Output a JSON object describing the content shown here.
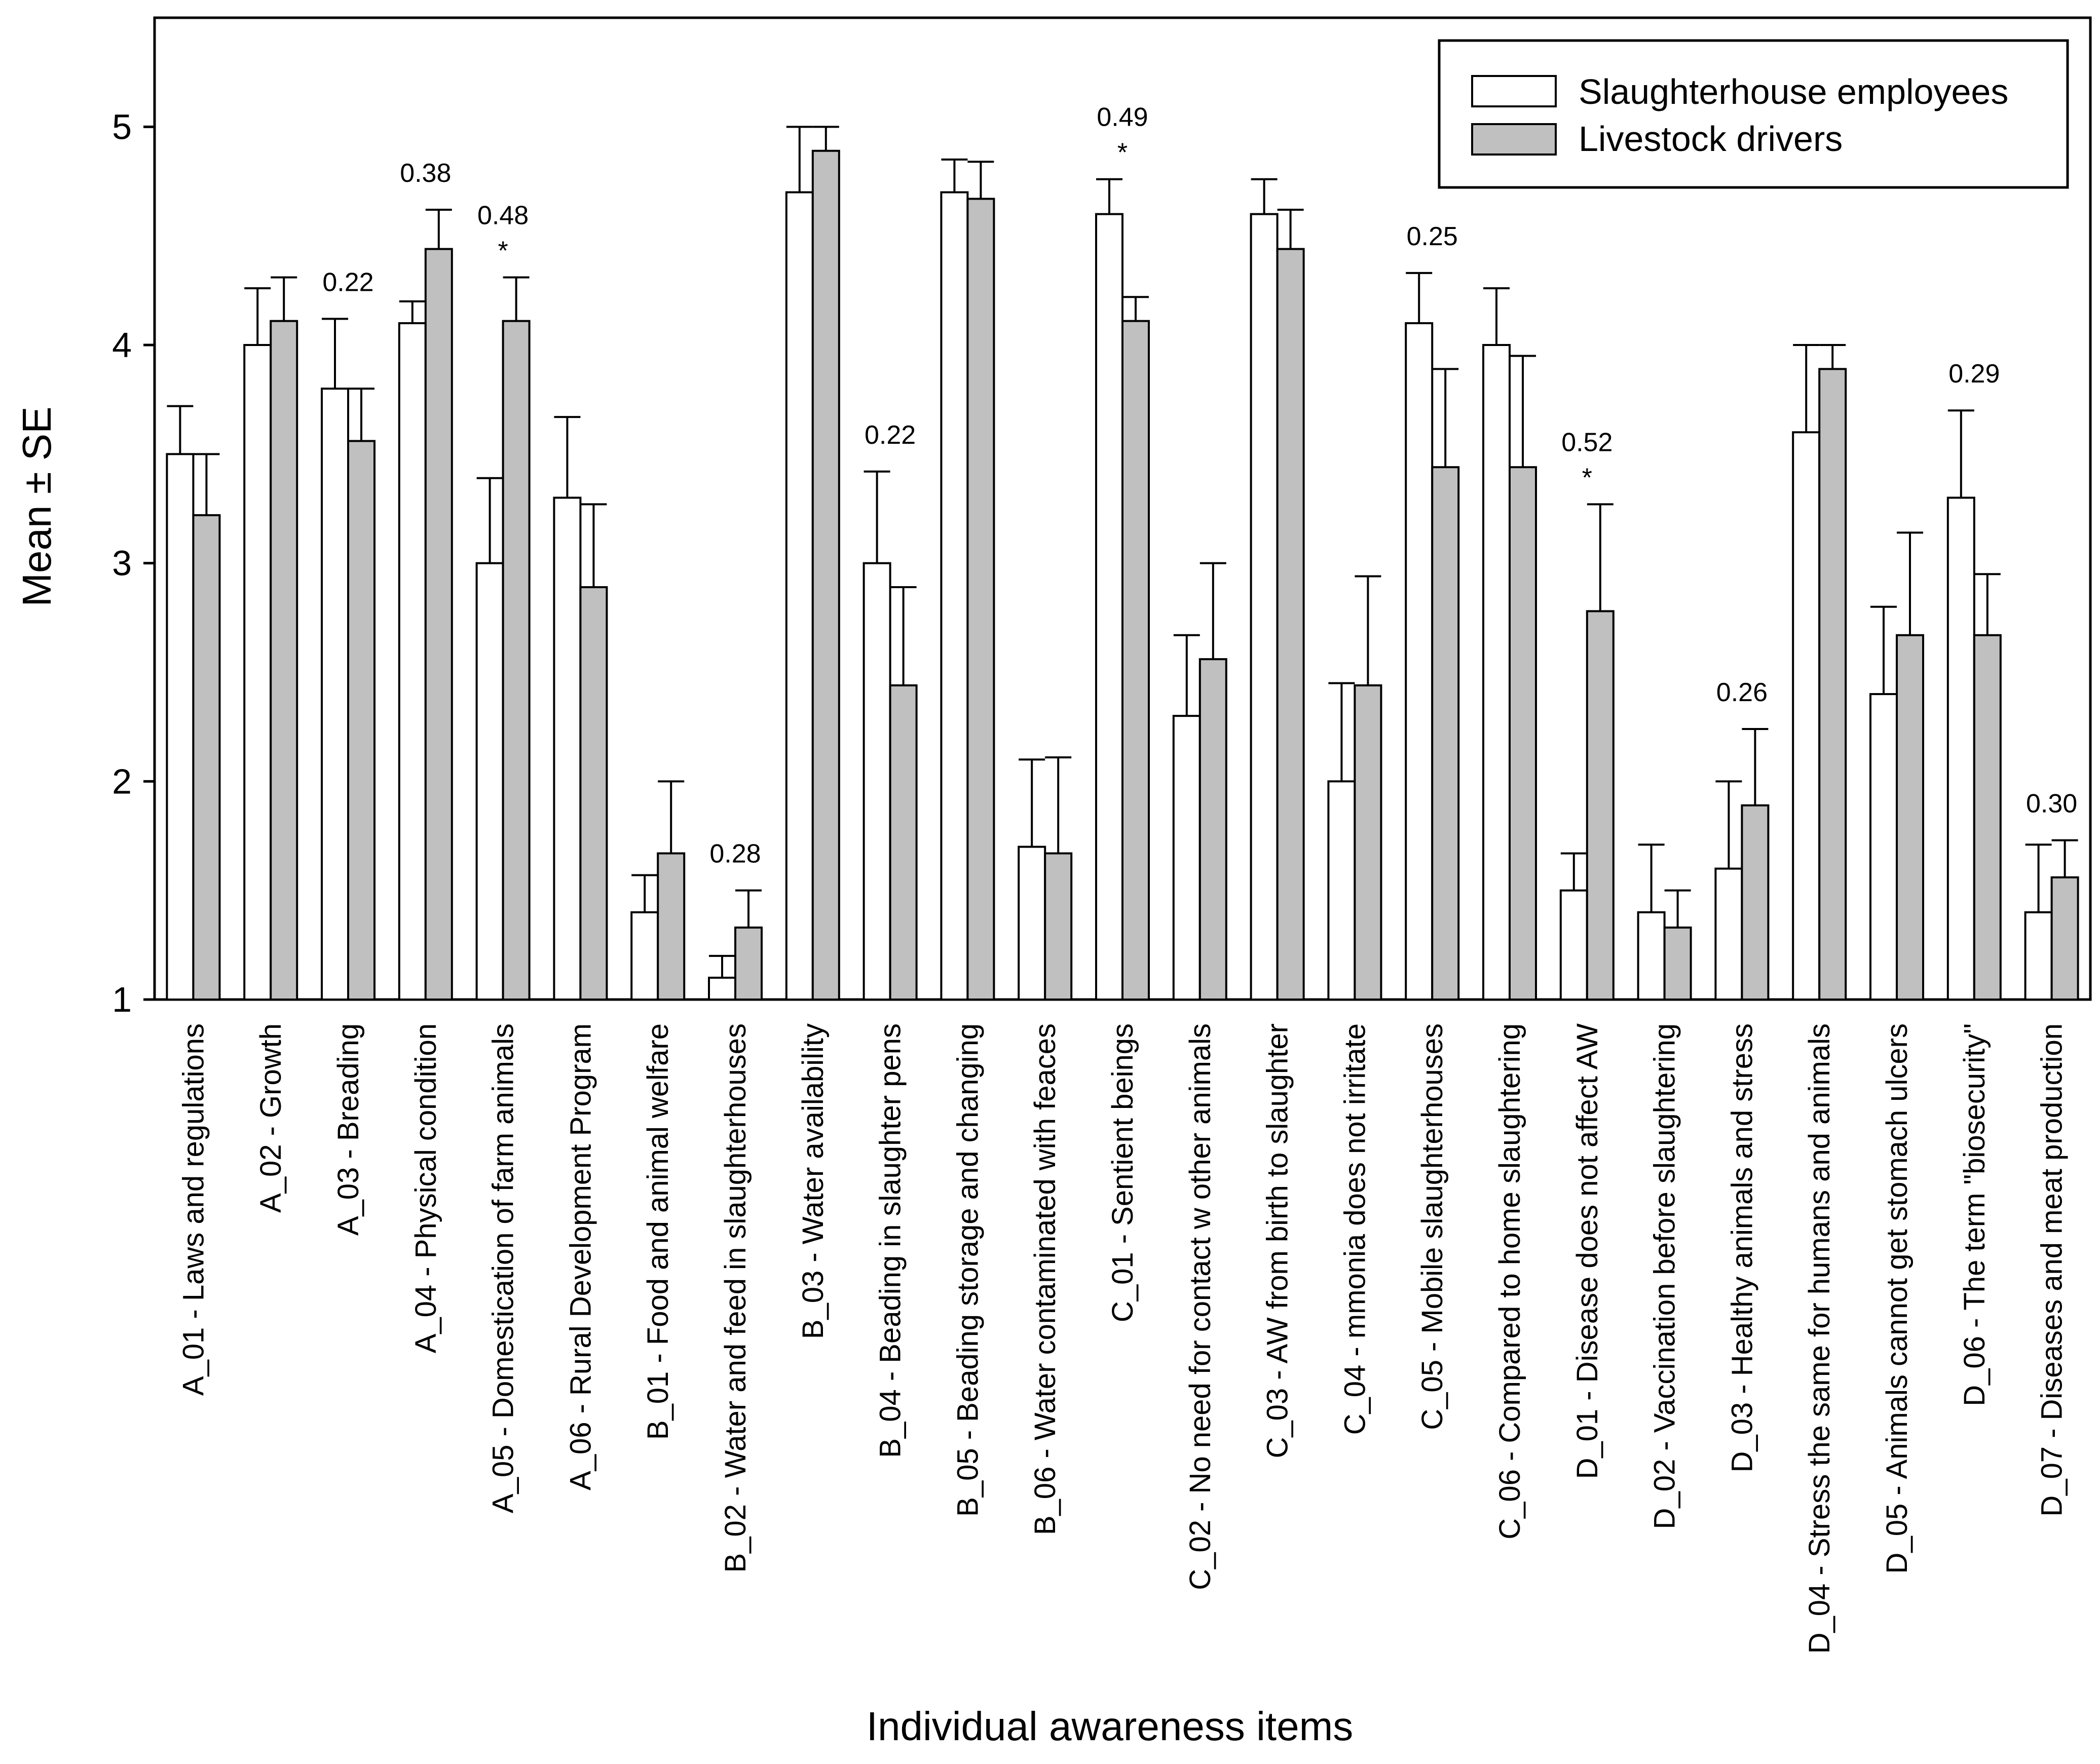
{
  "chart_data": {
    "type": "bar",
    "title": "",
    "xlabel": "Individual awareness items",
    "ylabel": "Mean ± SE",
    "ylim": [
      1,
      5.5
    ],
    "yticks": [
      "1",
      "2",
      "3",
      "4",
      "5"
    ],
    "grid": false,
    "legend_position": "top-right",
    "categories": [
      "A_01 - Laws and regulations",
      "A_02 - Growth",
      "A_03 - Breading",
      "A_04 - Physical condition",
      "A_05 - Domestication of farm animals",
      "A_06 - Rural Development Program",
      "B_01 - Food and animal welfare",
      "B_02 - Water and feed in slaughterhouses",
      "B_03 - Water availability",
      "B_04 - Beading in slaughter pens",
      "B_05 - Beading storage and changing",
      "B_06 - Water contaminated with feaces",
      "C_01 - Sentient beings",
      "C_02 - No need for contact w other animals",
      "C_03 - AW from birth to slaughter",
      "C_04 - mmonia does not irritate",
      "C_05 - Mobile slaughterhouses",
      "C_06 - Compared to home slaughtering",
      "D_01 - Disease does not affect AW",
      "D_02 - Vaccination before slaughtering",
      "D_03 - Healthy animals and stress",
      "D_04 - Stress the same for humans and animals",
      "D_05 - Animals cannot get stomach ulcers",
      "D_06 - The term \"biosecurity\"",
      "D_07 - Diseases and meat production"
    ],
    "series": [
      {
        "name": "Slaughterhouse employees",
        "color": "#ffffff",
        "values": [
          3.5,
          4.0,
          3.8,
          4.1,
          3.0,
          3.3,
          1.4,
          1.1,
          4.7,
          3.0,
          4.7,
          1.7,
          4.6,
          2.3,
          4.6,
          2.0,
          4.1,
          4.0,
          1.5,
          1.4,
          1.6,
          3.6,
          2.4,
          3.3,
          1.4
        ],
        "se": [
          0.22,
          0.26,
          0.32,
          0.1,
          0.39,
          0.37,
          0.17,
          0.1,
          0.3,
          0.42,
          0.15,
          0.4,
          0.16,
          0.37,
          0.16,
          0.45,
          0.23,
          0.26,
          0.17,
          0.31,
          0.4,
          0.4,
          0.4,
          0.4,
          0.31
        ]
      },
      {
        "name": "Livestock drivers",
        "color": "#c0c0c0",
        "values": [
          3.22,
          4.11,
          3.56,
          4.44,
          4.11,
          2.89,
          1.67,
          1.33,
          4.89,
          2.44,
          4.67,
          1.67,
          4.11,
          2.56,
          4.44,
          2.44,
          3.44,
          3.44,
          2.78,
          1.33,
          1.89,
          3.89,
          2.67,
          2.67,
          1.56
        ],
        "se": [
          0.28,
          0.2,
          0.24,
          0.18,
          0.2,
          0.38,
          0.33,
          0.17,
          0.11,
          0.45,
          0.17,
          0.44,
          0.11,
          0.44,
          0.18,
          0.5,
          0.45,
          0.51,
          0.49,
          0.17,
          0.35,
          0.11,
          0.47,
          0.28,
          0.17
        ]
      }
    ],
    "annotations": [
      {
        "category": 2,
        "value_text": "0.22",
        "star": ""
      },
      {
        "category": 3,
        "value_text": "0.38",
        "star": ""
      },
      {
        "category": 4,
        "value_text": "0.48",
        "star": "*"
      },
      {
        "category": 7,
        "value_text": "0.28",
        "star": ""
      },
      {
        "category": 9,
        "value_text": "0.22",
        "star": ""
      },
      {
        "category": 12,
        "value_text": "0.49",
        "star": "*"
      },
      {
        "category": 16,
        "value_text": "0.25",
        "star": ""
      },
      {
        "category": 18,
        "value_text": "0.52",
        "star": "*"
      },
      {
        "category": 20,
        "value_text": "0.26",
        "star": ""
      },
      {
        "category": 23,
        "value_text": "0.29",
        "star": ""
      },
      {
        "category": 24,
        "value_text": "0.30",
        "star": ""
      }
    ]
  }
}
